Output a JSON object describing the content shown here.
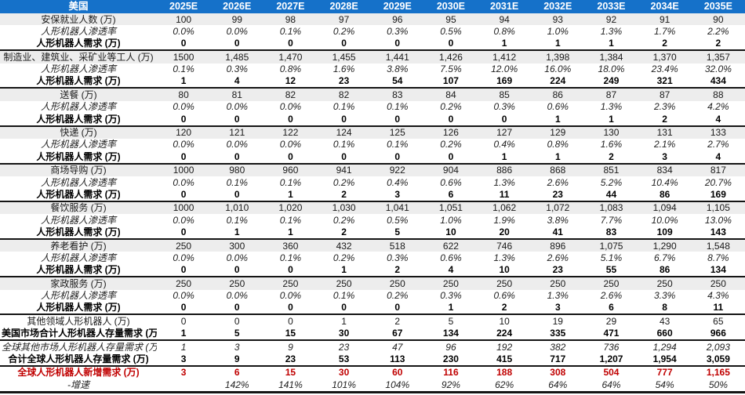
{
  "colors": {
    "header_bg": "#1571C9",
    "header_text": "#FFFFFF",
    "stripe_bg": "#EDEDED",
    "accent_red": "#C00000",
    "border_dark": "#141414"
  },
  "table": {
    "header": {
      "corner": "美国",
      "years": [
        "2025E",
        "2026E",
        "2027E",
        "2028E",
        "2029E",
        "2030E",
        "2031E",
        "2032E",
        "2033E",
        "2034E",
        "2035E"
      ]
    },
    "rows": [
      {
        "label": "安保就业人数 (万)",
        "style": "category",
        "border_top": false,
        "values": [
          "100",
          "99",
          "98",
          "97",
          "96",
          "95",
          "94",
          "93",
          "92",
          "91",
          "90"
        ]
      },
      {
        "label": "人形机器人渗透率",
        "style": "penetration",
        "border_top": false,
        "values": [
          "0.0%",
          "0.0%",
          "0.1%",
          "0.2%",
          "0.3%",
          "0.5%",
          "0.8%",
          "1.0%",
          "1.3%",
          "1.7%",
          "2.2%"
        ]
      },
      {
        "label": "人形机器人需求 (万)",
        "style": "demand",
        "border_top": false,
        "values": [
          "0",
          "0",
          "0",
          "0",
          "0",
          "0",
          "1",
          "1",
          "1",
          "2",
          "2"
        ]
      },
      {
        "label": "制造业、建筑业、采矿业等工人 (万)",
        "style": "category",
        "border_top": true,
        "values": [
          "1500",
          "1,485",
          "1,470",
          "1,455",
          "1,441",
          "1,426",
          "1,412",
          "1,398",
          "1,384",
          "1,370",
          "1,357"
        ]
      },
      {
        "label": "人形机器人渗透率",
        "style": "penetration",
        "border_top": false,
        "values": [
          "0.1%",
          "0.3%",
          "0.8%",
          "1.6%",
          "3.8%",
          "7.5%",
          "12.0%",
          "16.0%",
          "18.0%",
          "23.4%",
          "32.0%"
        ]
      },
      {
        "label": "人形机器人需求 (万)",
        "style": "demand",
        "border_top": false,
        "values": [
          "1",
          "4",
          "12",
          "23",
          "54",
          "107",
          "169",
          "224",
          "249",
          "321",
          "434"
        ]
      },
      {
        "label": "送餐 (万)",
        "style": "category",
        "border_top": true,
        "values": [
          "80",
          "81",
          "82",
          "82",
          "83",
          "84",
          "85",
          "86",
          "87",
          "87",
          "88"
        ]
      },
      {
        "label": "人形机器人渗透率",
        "style": "penetration",
        "border_top": false,
        "values": [
          "0.0%",
          "0.0%",
          "0.0%",
          "0.1%",
          "0.1%",
          "0.2%",
          "0.3%",
          "0.6%",
          "1.3%",
          "2.3%",
          "4.2%"
        ]
      },
      {
        "label": "人形机器人需求 (万)",
        "style": "demand",
        "border_top": false,
        "values": [
          "0",
          "0",
          "0",
          "0",
          "0",
          "0",
          "0",
          "1",
          "1",
          "2",
          "4"
        ]
      },
      {
        "label": "快递 (万)",
        "style": "category",
        "border_top": true,
        "values": [
          "120",
          "121",
          "122",
          "124",
          "125",
          "126",
          "127",
          "129",
          "130",
          "131",
          "133"
        ]
      },
      {
        "label": "人形机器人渗透率",
        "style": "penetration",
        "border_top": false,
        "values": [
          "0.0%",
          "0.0%",
          "0.0%",
          "0.1%",
          "0.1%",
          "0.2%",
          "0.4%",
          "0.8%",
          "1.6%",
          "2.1%",
          "2.7%"
        ]
      },
      {
        "label": "人形机器人需求 (万)",
        "style": "demand",
        "border_top": false,
        "values": [
          "0",
          "0",
          "0",
          "0",
          "0",
          "0",
          "1",
          "1",
          "2",
          "3",
          "4"
        ]
      },
      {
        "label": "商场导购 (万)",
        "style": "category",
        "border_top": true,
        "values": [
          "1000",
          "980",
          "960",
          "941",
          "922",
          "904",
          "886",
          "868",
          "851",
          "834",
          "817"
        ]
      },
      {
        "label": "人形机器人渗透率",
        "style": "penetration",
        "border_top": false,
        "values": [
          "0.0%",
          "0.1%",
          "0.1%",
          "0.2%",
          "0.4%",
          "0.6%",
          "1.3%",
          "2.6%",
          "5.2%",
          "10.4%",
          "20.7%"
        ]
      },
      {
        "label": "人形机器人需求 (万)",
        "style": "demand",
        "border_top": false,
        "values": [
          "0",
          "0",
          "1",
          "2",
          "3",
          "6",
          "11",
          "23",
          "44",
          "86",
          "169"
        ]
      },
      {
        "label": "餐饮服务 (万)",
        "style": "category",
        "border_top": true,
        "values": [
          "1000",
          "1,010",
          "1,020",
          "1,030",
          "1,041",
          "1,051",
          "1,062",
          "1,072",
          "1,083",
          "1,094",
          "1,105"
        ]
      },
      {
        "label": "人形机器人渗透率",
        "style": "penetration",
        "border_top": false,
        "values": [
          "0.0%",
          "0.1%",
          "0.1%",
          "0.2%",
          "0.5%",
          "1.0%",
          "1.9%",
          "3.8%",
          "7.7%",
          "10.0%",
          "13.0%"
        ]
      },
      {
        "label": "人形机器人需求 (万)",
        "style": "demand",
        "border_top": false,
        "values": [
          "0",
          "1",
          "1",
          "2",
          "5",
          "10",
          "20",
          "41",
          "83",
          "109",
          "143"
        ]
      },
      {
        "label": "养老看护 (万)",
        "style": "category",
        "border_top": true,
        "values": [
          "250",
          "300",
          "360",
          "432",
          "518",
          "622",
          "746",
          "896",
          "1,075",
          "1,290",
          "1,548"
        ]
      },
      {
        "label": "人形机器人渗透率",
        "style": "penetration",
        "border_top": false,
        "values": [
          "0.0%",
          "0.0%",
          "0.1%",
          "0.2%",
          "0.3%",
          "0.6%",
          "1.3%",
          "2.6%",
          "5.1%",
          "6.7%",
          "8.7%"
        ]
      },
      {
        "label": "人形机器人需求 (万)",
        "style": "demand",
        "border_top": false,
        "values": [
          "0",
          "0",
          "0",
          "1",
          "2",
          "4",
          "10",
          "23",
          "55",
          "86",
          "134"
        ]
      },
      {
        "label": "家政服务 (万)",
        "style": "category",
        "border_top": true,
        "values": [
          "250",
          "250",
          "250",
          "250",
          "250",
          "250",
          "250",
          "250",
          "250",
          "250",
          "250"
        ]
      },
      {
        "label": "人形机器人渗透率",
        "style": "penetration",
        "border_top": false,
        "values": [
          "0.0%",
          "0.0%",
          "0.0%",
          "0.1%",
          "0.2%",
          "0.3%",
          "0.6%",
          "1.3%",
          "2.6%",
          "3.3%",
          "4.3%"
        ]
      },
      {
        "label": "人形机器人需求 (万)",
        "style": "demand",
        "border_top": false,
        "values": [
          "0",
          "0",
          "0",
          "0",
          "0",
          "1",
          "2",
          "3",
          "6",
          "8",
          "11"
        ]
      },
      {
        "label": "其他领域人形机器人 (万)",
        "style": "plain",
        "border_top": true,
        "values": [
          "0",
          "0",
          "0",
          "1",
          "2",
          "5",
          "10",
          "19",
          "29",
          "43",
          "65"
        ]
      },
      {
        "label": "美国市场合计人形机器人存量需求 (万)",
        "style": "total-bold",
        "border_top": false,
        "values": [
          "1",
          "5",
          "15",
          "30",
          "67",
          "134",
          "224",
          "335",
          "471",
          "660",
          "966"
        ]
      },
      {
        "label": "全球其他市场人形机器人存量需求 (万)",
        "style": "italic-row",
        "border_top": true,
        "values": [
          "1",
          "3",
          "9",
          "23",
          "47",
          "96",
          "192",
          "382",
          "736",
          "1,294",
          "2,093"
        ]
      },
      {
        "label": "合计全球人形机器人存量需求 (万)",
        "style": "total-bold",
        "border_top": false,
        "values": [
          "3",
          "9",
          "23",
          "53",
          "113",
          "230",
          "415",
          "717",
          "1,207",
          "1,954",
          "3,059"
        ]
      },
      {
        "label": "全球人形机器人新增需求 (万)",
        "style": "red-row",
        "border_top": true,
        "values": [
          "3",
          "6",
          "15",
          "30",
          "60",
          "116",
          "188",
          "308",
          "504",
          "777",
          "1,165"
        ]
      },
      {
        "label": "-增速",
        "style": "growth-row",
        "border_top": false,
        "values": [
          "",
          "142%",
          "141%",
          "101%",
          "104%",
          "92%",
          "62%",
          "64%",
          "64%",
          "54%",
          "50%"
        ]
      }
    ]
  }
}
